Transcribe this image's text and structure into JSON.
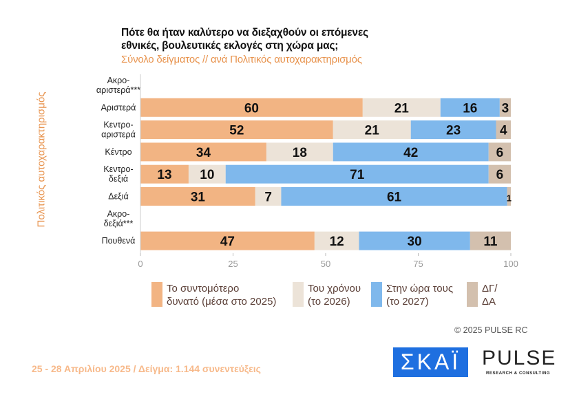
{
  "title_line1": "Πότε θα ήταν καλύτερο να διεξαχθούν οι επόμενες",
  "title_line2": "εθνικές, βουλευτικές εκλογές στη χώρα μας;",
  "subtitle": "Σύνολο δείγματος // ανά Πολιτικός αυτοχαρακτηρισμός",
  "footer": "25 - 28 Απριλίου 2025  /  Δείγμα:  1.144 συνεντεύξεις",
  "copyright": "©  2025  PULSE RC",
  "logos": {
    "skai": "ΣΚΑΪ",
    "pulse": "PULSE",
    "pulse_sub": "RESEARCH & CONSULTING"
  },
  "chart_data": {
    "type": "bar",
    "orientation": "horizontal-stacked",
    "ylabel": "Πολιτικός αυτοχαρακτηρισμός",
    "xlim": [
      0,
      100
    ],
    "xticks": [
      "0",
      "25",
      "50",
      "75",
      "100"
    ],
    "categories": [
      [
        "Ακρο-",
        "αριστερά***"
      ],
      [
        "Αριστερά"
      ],
      [
        "Κεντρο-",
        "αριστερά"
      ],
      [
        "Κέντρο"
      ],
      [
        "Κεντρο-",
        "δεξιά"
      ],
      [
        "Δεξιά"
      ],
      [
        "Ακρο-",
        "δεξιά***"
      ],
      [
        "Πουθενά"
      ]
    ],
    "series": [
      {
        "name": "Το συντομότερο δυνατό (μέσα στο 2025)",
        "legend": [
          "Το συντομότερο",
          "δυνατό (μέσα στο 2025)"
        ],
        "color": "#f2b483",
        "values": [
          null,
          60,
          52,
          34,
          13,
          31,
          null,
          47
        ]
      },
      {
        "name": "Του χρόνου (το 2026)",
        "legend": [
          "Του χρόνου",
          "(το 2026)"
        ],
        "color": "#ece3d8",
        "values": [
          null,
          21,
          21,
          18,
          10,
          7,
          null,
          12
        ]
      },
      {
        "name": "Στην ώρα τους (το 2027)",
        "legend": [
          "Στην ώρα τους",
          "(το 2027)"
        ],
        "color": "#7fb8ec",
        "values": [
          null,
          16,
          23,
          42,
          71,
          61,
          null,
          30
        ]
      },
      {
        "name": "ΔΓ/ΔΑ",
        "legend": [
          "ΔΓ/",
          "ΔΑ"
        ],
        "color": "#d3c0ae",
        "values": [
          null,
          3,
          4,
          6,
          6,
          1,
          null,
          11
        ]
      }
    ]
  }
}
